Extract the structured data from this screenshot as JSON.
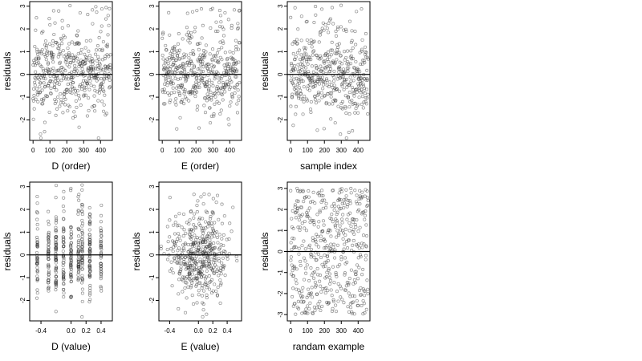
{
  "chart_data": [
    {
      "type": "scatter",
      "xlabel": "D (order)",
      "ylabel": "residuals",
      "xlim": [
        -20,
        470
      ],
      "ylim": [
        -2.9,
        3.2
      ],
      "xticks": [
        0,
        100,
        200,
        300,
        400
      ],
      "yticks": [
        -2,
        -1,
        0,
        1,
        2,
        3
      ],
      "hline": 0,
      "x_kind": "index",
      "n": 460,
      "seed": 11
    },
    {
      "type": "scatter",
      "xlabel": "E (order)",
      "ylabel": "residuals",
      "xlim": [
        -20,
        470
      ],
      "ylim": [
        -2.9,
        3.2
      ],
      "xticks": [
        0,
        100,
        200,
        300,
        400
      ],
      "yticks": [
        -2,
        -1,
        0,
        1,
        2,
        3
      ],
      "hline": 0,
      "x_kind": "index",
      "n": 460,
      "seed": 23
    },
    {
      "type": "scatter",
      "xlabel": "sample index",
      "ylabel": "residuals",
      "xlim": [
        -20,
        470
      ],
      "ylim": [
        -2.9,
        3.2
      ],
      "xticks": [
        0,
        100,
        200,
        300,
        400
      ],
      "yticks": [
        -2,
        -1,
        0,
        1,
        2,
        3
      ],
      "hline": 0,
      "x_kind": "index",
      "n": 460,
      "seed": 37
    },
    {
      "type": "scatter",
      "xlabel": "D (value)",
      "ylabel": "residuals",
      "xlim": [
        -0.55,
        0.55
      ],
      "ylim": [
        -2.9,
        3.2
      ],
      "xticks": [
        -0.4,
        0.0,
        0.2,
        0.4
      ],
      "xtick_labels": [
        "-0.4",
        "0.0",
        "0.2",
        "0.4"
      ],
      "yticks": [
        -2,
        -1,
        0,
        1,
        2,
        3
      ],
      "hline": 0,
      "x_kind": "discrete",
      "x_levels": [
        -0.45,
        -0.3,
        -0.2,
        -0.1,
        0.0,
        0.1,
        0.15,
        0.25,
        0.4
      ],
      "n": 460,
      "seed": 41
    },
    {
      "type": "scatter",
      "xlabel": "E (value)",
      "ylabel": "residuals",
      "xlim": [
        -0.55,
        0.6
      ],
      "ylim": [
        -2.9,
        3.2
      ],
      "xticks": [
        -0.4,
        0.0,
        0.2,
        0.4
      ],
      "xtick_labels": [
        "-0.4",
        "0.0",
        "0.2",
        "0.4"
      ],
      "yticks": [
        -2,
        -1,
        0,
        1,
        2,
        3
      ],
      "hline": 0,
      "x_kind": "normal",
      "x_mean": 0.0,
      "x_sd": 0.2,
      "n": 460,
      "seed": 53
    },
    {
      "type": "scatter",
      "xlabel": "randam example",
      "ylabel": "residuals",
      "xlim": [
        -20,
        470
      ],
      "ylim": [
        -3.3,
        3.3
      ],
      "xticks": [
        0,
        100,
        200,
        300,
        400
      ],
      "yticks": [
        -3,
        -2,
        -1,
        0,
        1,
        2,
        3
      ],
      "hline": 0,
      "x_kind": "index",
      "y_kind": "uniform",
      "n": 460,
      "seed": 67
    }
  ]
}
